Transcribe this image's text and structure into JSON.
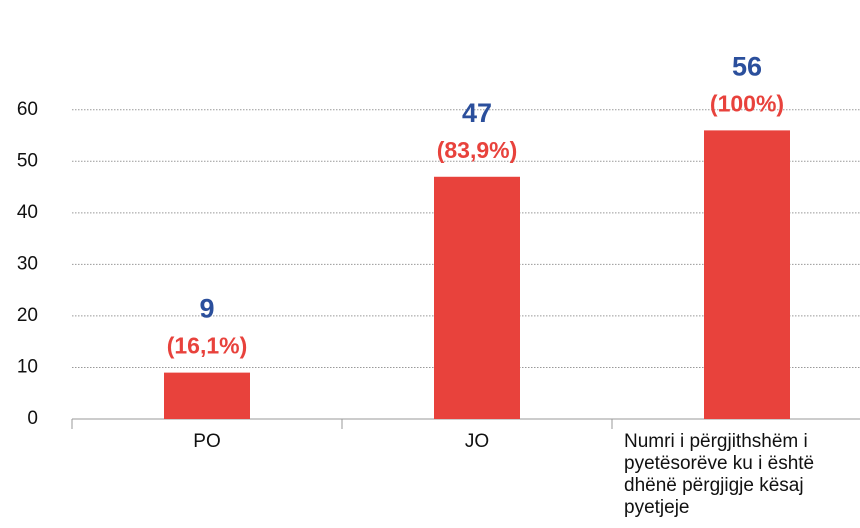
{
  "chart_data": {
    "type": "bar",
    "categories": [
      "PO",
      "JO",
      "Numri i përgjithshëm i pyetësorëve ku i është dhënë përgjigje kësaj pyetjeje"
    ],
    "values": [
      9,
      47,
      56
    ],
    "annotations": [
      "(16,1%)",
      "(83,9%)",
      "(100%)"
    ],
    "color": "#e8423c",
    "ylim": [
      0,
      65
    ],
    "yticks": [
      0,
      10,
      20,
      30,
      40,
      50,
      60
    ],
    "grid": true
  }
}
